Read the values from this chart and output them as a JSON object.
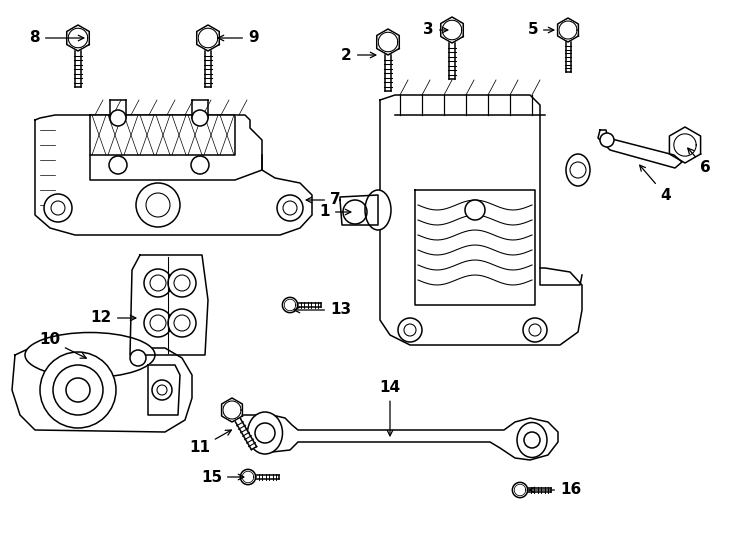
{
  "background_color": "#ffffff",
  "line_color": "#000000",
  "fig_width": 7.34,
  "fig_height": 5.4,
  "dpi": 100,
  "lw": 1.1
}
